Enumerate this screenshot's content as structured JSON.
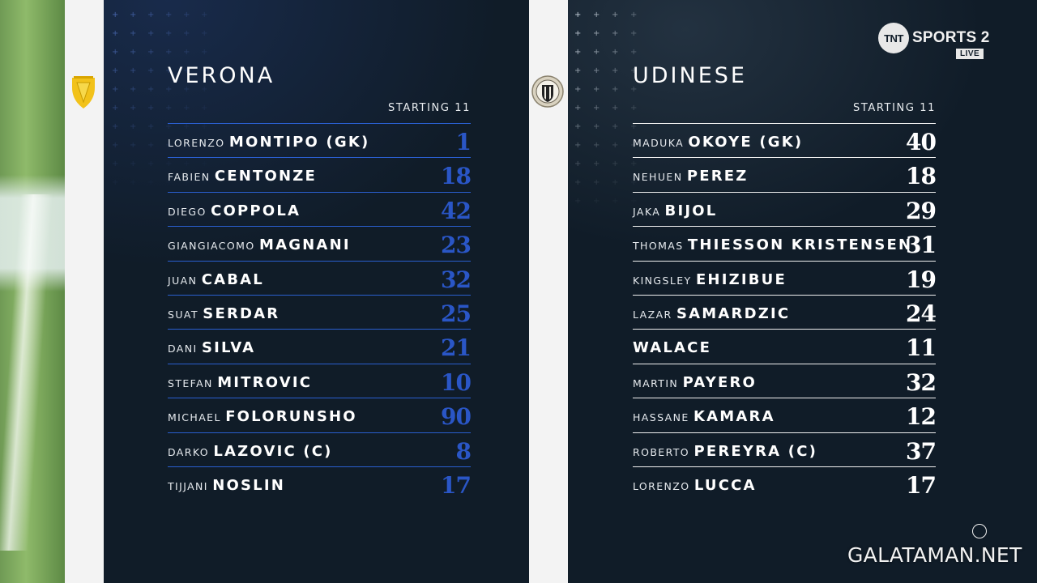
{
  "broadcaster": {
    "logo_text": "TNT",
    "channel": "SPORTS 2",
    "live_label": "LIVE"
  },
  "watermark": "GALATAMAN.NET",
  "home": {
    "team_name": "VERONA",
    "lineup_label": "STARTING 11",
    "crest_icon": "hellas-verona-crest-icon",
    "number_color": "#2a56c6",
    "players": [
      {
        "first": "LORENZO",
        "last": "MONTIPO (GK)",
        "number": "1"
      },
      {
        "first": "FABIEN",
        "last": "CENTONZE",
        "number": "18"
      },
      {
        "first": "DIEGO",
        "last": "COPPOLA",
        "number": "42"
      },
      {
        "first": "GIANGIACOMO",
        "last": "MAGNANI",
        "number": "23"
      },
      {
        "first": "JUAN",
        "last": "CABAL",
        "number": "32"
      },
      {
        "first": "SUAT",
        "last": "SERDAR",
        "number": "25"
      },
      {
        "first": "DANI",
        "last": "SILVA",
        "number": "21"
      },
      {
        "first": "STEFAN",
        "last": "MITROVIC",
        "number": "10"
      },
      {
        "first": "MICHAEL",
        "last": "FOLORUNSHO",
        "number": "90"
      },
      {
        "first": "DARKO",
        "last": "LAZOVIC (C)",
        "number": "8"
      },
      {
        "first": "TIJJANI",
        "last": "NOSLIN",
        "number": "17"
      }
    ]
  },
  "away": {
    "team_name": "UDINESE",
    "lineup_label": "STARTING 11",
    "crest_icon": "udinese-crest-icon",
    "number_color": "#ffffff",
    "players": [
      {
        "first": "MADUKA",
        "last": "OKOYE (GK)",
        "number": "40"
      },
      {
        "first": "NEHUEN",
        "last": "PEREZ",
        "number": "18"
      },
      {
        "first": "JAKA",
        "last": "BIJOL",
        "number": "29"
      },
      {
        "first": "THOMAS",
        "last": "THIESSON KRISTENSEN",
        "number": "31"
      },
      {
        "first": "KINGSLEY",
        "last": "EHIZIBUE",
        "number": "19"
      },
      {
        "first": "LAZAR",
        "last": "SAMARDZIC",
        "number": "24"
      },
      {
        "first": "",
        "last": "WALACE",
        "number": "11"
      },
      {
        "first": "MARTIN",
        "last": "PAYERO",
        "number": "32"
      },
      {
        "first": "HASSANE",
        "last": "KAMARA",
        "number": "12"
      },
      {
        "first": "ROBERTO",
        "last": "PEREYRA (C)",
        "number": "37"
      },
      {
        "first": "LORENZO",
        "last": "LUCCA",
        "number": "17"
      }
    ]
  }
}
